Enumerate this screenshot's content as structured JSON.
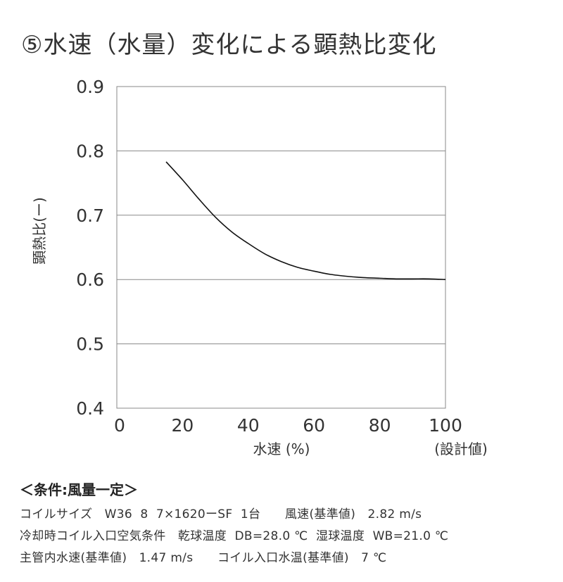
{
  "title": "⑤水速（水量）変化による顕熱比変化",
  "chart_data": {
    "type": "line",
    "xlabel": "水速 (%)",
    "xlabel_note": "(設計値)",
    "ylabel": "顕熱比(ー)",
    "xlim": [
      0,
      100
    ],
    "ylim": [
      0.4,
      0.9
    ],
    "x_ticks": [
      "0",
      "20",
      "40",
      "60",
      "80",
      "100"
    ],
    "y_ticks": [
      "0.4",
      "0.5",
      "0.6",
      "0.7",
      "0.8",
      "0.9"
    ],
    "grid": "horizontal",
    "series": [
      {
        "x": [
          15,
          20,
          25,
          30,
          35,
          40,
          45,
          50,
          55,
          60,
          65,
          70,
          75,
          80,
          85,
          90,
          95,
          100
        ],
        "y": [
          0.783,
          0.755,
          0.725,
          0.697,
          0.674,
          0.656,
          0.64,
          0.628,
          0.619,
          0.613,
          0.608,
          0.605,
          0.603,
          0.602,
          0.601,
          0.601,
          0.601,
          0.6
        ]
      }
    ]
  },
  "conditions": {
    "heading": "＜条件:風量一定＞",
    "lines": [
      "コイルサイズ　W36  8  7×1620ーSF  1台　　風速(基準値)　2.82 m/s",
      "冷却時コイル入口空気条件　乾球温度  DB=28.0 ℃  湿球温度  WB=21.0 ℃",
      "主管内水速(基準値)　1.47 m/s　　コイル入口水温(基準値)　7 ℃"
    ]
  }
}
